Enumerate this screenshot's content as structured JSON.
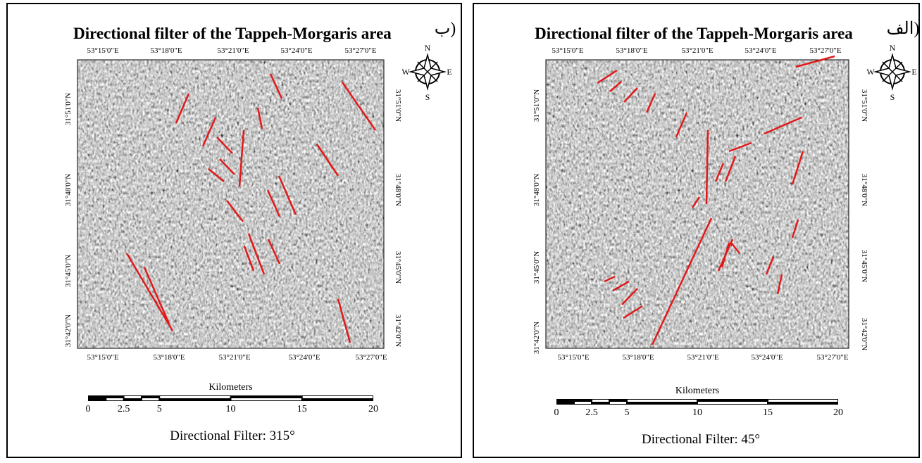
{
  "panels": [
    {
      "label": "ب)",
      "title": "Directional filter of the Tappeh-Morgaris area",
      "top_lon_labels": [
        "53°15'0\"E",
        "53°18'0\"E",
        "53°21'0\"E",
        "53°24'0\"E",
        "53°27'0\"E"
      ],
      "bottom_lon_labels": [
        "53°15'0\"E",
        "53°18'0\"E",
        "53°21'0\"E",
        "53°24'0\"E",
        "53°27'0\"E"
      ],
      "left_lat_labels": [
        "31°51'0\"N",
        "31°48'0\"N",
        "31°45'0\"N",
        "31°42'0\"N"
      ],
      "right_lat_labels": [
        "31°51'0\"N",
        "31°48'0\"N",
        "31°45'0\"N",
        "31°42'0\"N"
      ],
      "compass": {
        "n": "N",
        "e": "E",
        "s": "S",
        "w": "W"
      },
      "scale_unit": "Kilometers",
      "scale_labels": [
        "0",
        "2.5",
        "5",
        "10",
        "15",
        "20"
      ],
      "caption": "Directional Filter: 315°"
    },
    {
      "label": "الف)",
      "title": "Directional filter of the Tappeh-Morgaris area",
      "top_lon_labels": [
        "53°15'0\"E",
        "53°18'0\"E",
        "53°21'0\"E",
        "53°24'0\"E",
        "53°27'0\"E"
      ],
      "bottom_lon_labels": [
        "53°15'0\"E",
        "53°18'0\"E",
        "53°21'0\"E",
        "53°24'0\"E",
        "53°27'0\"E"
      ],
      "left_lat_labels": [
        "31°51'0\"N",
        "31°48'0\"N",
        "31°45'0\"N",
        "31°42'0\"N"
      ],
      "right_lat_labels": [
        "31°51'0\"N",
        "31°48'0\"N",
        "31°45'0\"N",
        "31°42'0\"N"
      ],
      "compass": {
        "n": "N",
        "e": "E",
        "s": "S",
        "w": "W"
      },
      "scale_unit": "Kilometers",
      "scale_labels": [
        "0",
        "2.5",
        "5",
        "10",
        "15",
        "20"
      ],
      "caption": "Directional Filter: 45°"
    }
  ]
}
